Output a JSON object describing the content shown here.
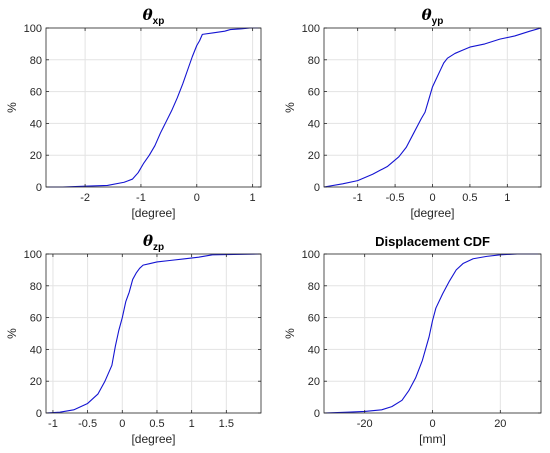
{
  "colors": {
    "line": "#1414d2",
    "grid": "#e3e3e3",
    "axis": "#262626",
    "text": "#262626"
  },
  "chart_data": [
    {
      "type": "line",
      "title": "θ",
      "title_subscript": "xp",
      "xlabel": "[degree]",
      "ylabel": "%",
      "xlim": [
        -2.7,
        1.15
      ],
      "ylim": [
        0,
        100
      ],
      "xticks": [
        -2,
        -1,
        0,
        1
      ],
      "yticks": [
        0,
        20,
        40,
        60,
        80,
        100
      ],
      "xtick_labels": [
        "-2",
        "-1",
        "0",
        "1"
      ],
      "ytick_labels": [
        "0",
        "20",
        "40",
        "60",
        "80",
        "100"
      ],
      "grid": true,
      "series": [
        {
          "x": [
            -2.7,
            -2.4,
            -2.0,
            -1.6,
            -1.3,
            -1.15,
            -1.05,
            -0.95,
            -0.85,
            -0.75,
            -0.65,
            -0.55,
            -0.45,
            -0.35,
            -0.25,
            -0.15,
            -0.08,
            0.0,
            0.05,
            0.1,
            0.3,
            0.5,
            0.6,
            0.8,
            0.95,
            1.15
          ],
          "y": [
            0,
            0,
            0.5,
            1,
            3,
            5,
            9,
            15,
            20,
            26,
            34,
            41,
            48,
            56,
            65,
            75,
            82,
            89,
            92,
            96,
            97,
            98,
            99,
            99.5,
            100,
            100
          ]
        }
      ]
    },
    {
      "type": "line",
      "title": "θ",
      "title_subscript": "yp",
      "xlabel": "[degree]",
      "ylabel": "%",
      "xlim": [
        -1.45,
        1.45
      ],
      "ylim": [
        0,
        100
      ],
      "xticks": [
        -1,
        -0.5,
        0,
        0.5,
        1
      ],
      "yticks": [
        0,
        20,
        40,
        60,
        80,
        100
      ],
      "xtick_labels": [
        "-1",
        "-0.5",
        "0",
        "0.5",
        "1"
      ],
      "ytick_labels": [
        "0",
        "20",
        "40",
        "60",
        "80",
        "100"
      ],
      "grid": true,
      "series": [
        {
          "x": [
            -1.45,
            -1.2,
            -1.0,
            -0.8,
            -0.6,
            -0.45,
            -0.35,
            -0.25,
            -0.15,
            -0.1,
            -0.05,
            0.0,
            0.05,
            0.1,
            0.15,
            0.2,
            0.3,
            0.4,
            0.5,
            0.7,
            0.9,
            1.1,
            1.3,
            1.45
          ],
          "y": [
            0,
            2,
            4,
            8,
            13,
            19,
            25,
            34,
            43,
            47,
            55,
            63,
            68,
            73,
            78,
            81,
            84,
            86,
            88,
            90,
            93,
            95,
            98,
            100
          ]
        }
      ]
    },
    {
      "type": "line",
      "title": "θ",
      "title_subscript": "zp",
      "xlabel": "[degree]",
      "ylabel": "%",
      "xlim": [
        -1.1,
        2.0
      ],
      "ylim": [
        0,
        100
      ],
      "xticks": [
        -1,
        -0.5,
        0,
        0.5,
        1,
        1.5
      ],
      "yticks": [
        0,
        20,
        40,
        60,
        80,
        100
      ],
      "xtick_labels": [
        "-1",
        "-0.5",
        "0",
        "0.5",
        "1",
        "1.5"
      ],
      "ytick_labels": [
        "0",
        "20",
        "40",
        "60",
        "80",
        "100"
      ],
      "grid": true,
      "series": [
        {
          "x": [
            -1.1,
            -0.9,
            -0.7,
            -0.5,
            -0.35,
            -0.25,
            -0.15,
            -0.1,
            -0.05,
            0.0,
            0.05,
            0.1,
            0.15,
            0.2,
            0.25,
            0.3,
            0.4,
            0.5,
            0.7,
            0.9,
            1.1,
            1.3,
            2.0
          ],
          "y": [
            0,
            0.5,
            2,
            6,
            12,
            20,
            30,
            42,
            52,
            60,
            70,
            76,
            84,
            88,
            91,
            93,
            94,
            95,
            96,
            97,
            98,
            99.5,
            100
          ]
        }
      ]
    },
    {
      "type": "line",
      "title": "Displacement CDF",
      "xlabel": "[mm]",
      "ylabel": "%",
      "xlim": [
        -32,
        32
      ],
      "ylim": [
        0,
        100
      ],
      "xticks": [
        -20,
        0,
        20
      ],
      "yticks": [
        0,
        20,
        40,
        60,
        80,
        100
      ],
      "xtick_labels": [
        "-20",
        "0",
        "20"
      ],
      "ytick_labels": [
        "0",
        "20",
        "40",
        "60",
        "80",
        "100"
      ],
      "grid": true,
      "series": [
        {
          "x": [
            -32,
            -25,
            -20,
            -15,
            -12,
            -9,
            -7,
            -5,
            -3,
            -1,
            0,
            1,
            3,
            5,
            7,
            9,
            12,
            16,
            20,
            25,
            32
          ],
          "y": [
            0,
            0.5,
            1,
            2,
            4,
            8,
            14,
            22,
            33,
            48,
            58,
            66,
            75,
            83,
            90,
            94,
            97,
            98.5,
            99.5,
            100,
            100
          ]
        }
      ]
    }
  ]
}
